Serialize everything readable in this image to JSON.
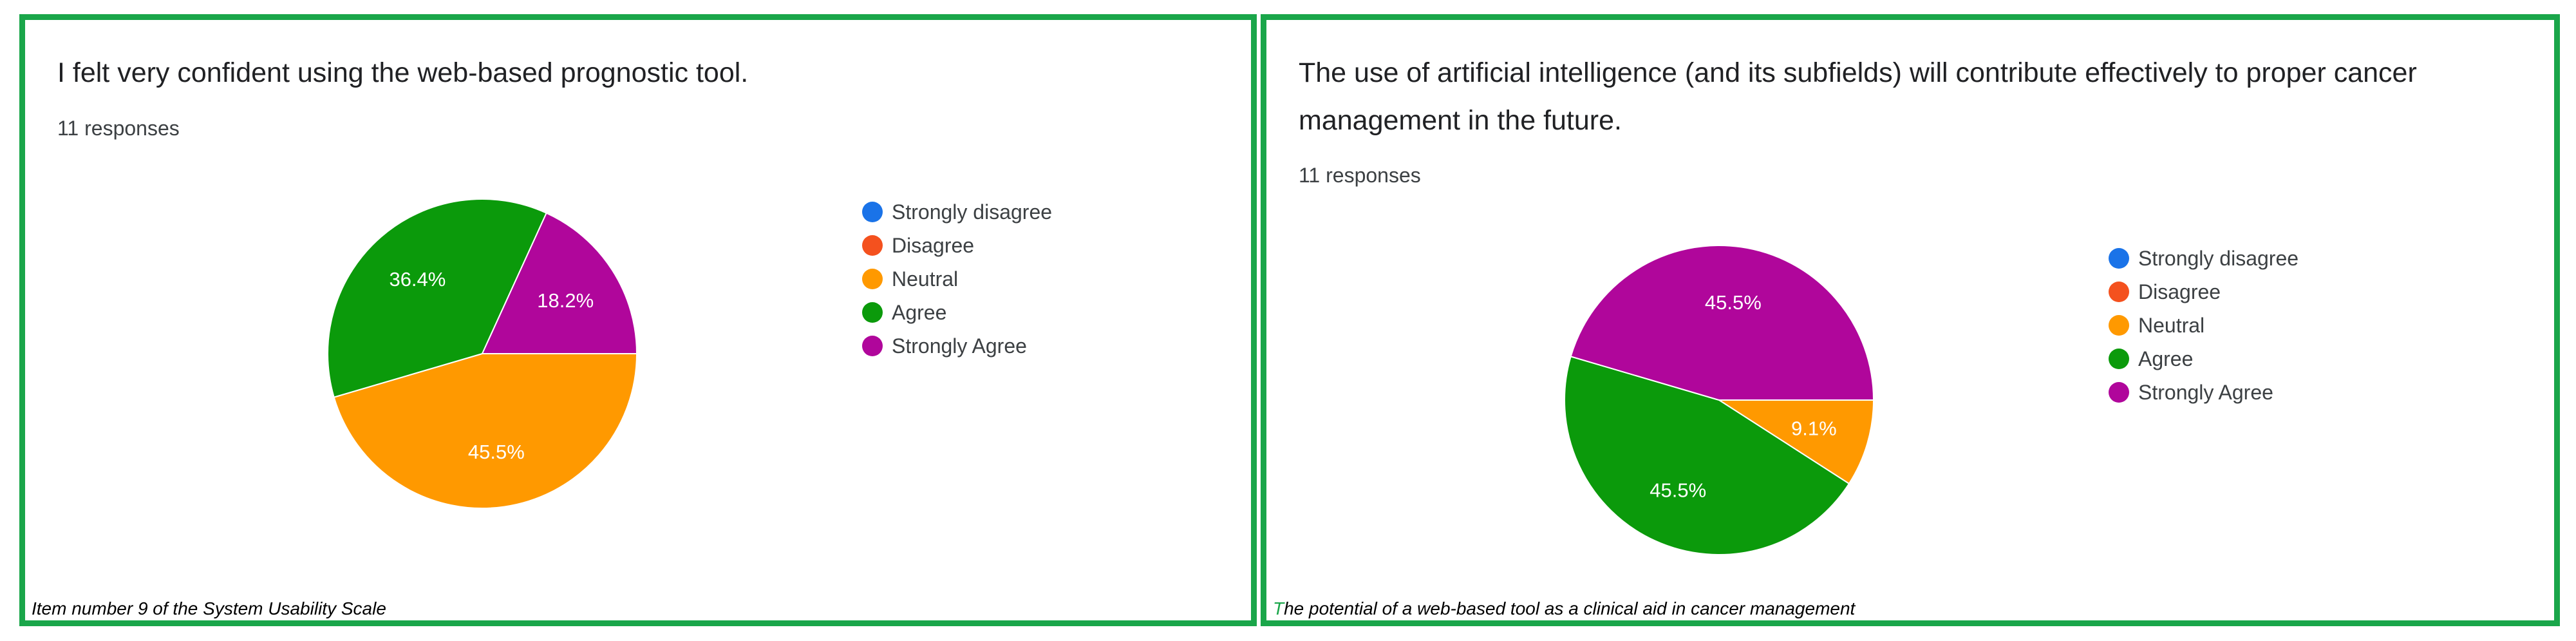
{
  "colors": {
    "border": "#1aa64a",
    "strongly_disagree": "#1a73e8",
    "disagree": "#f4511e",
    "neutral": "#ff9900",
    "agree": "#0b9a0b",
    "strongly_agree": "#b0069b"
  },
  "legend_items": [
    "Strongly disagree",
    "Disagree",
    "Neutral",
    "Agree",
    "Strongly Agree"
  ],
  "left": {
    "title": "I felt very confident using the web-based prognostic tool.",
    "responses": "11 responses",
    "caption_lead": "",
    "caption_rest": "Item number  9  of the System Usability Scale"
  },
  "right": {
    "title_line1": "The use of artificial intelligence (and its subfields) will contribute effectively to proper cancer",
    "title_line2": "management in the future.",
    "responses": "11 responses",
    "caption_lead": "T",
    "caption_rest": "he potential of a web-based tool as a clinical aid in cancer management"
  },
  "chart_data": [
    {
      "type": "pie",
      "title": "I felt very confident using the web-based prognostic tool.",
      "categories": [
        "Strongly disagree",
        "Disagree",
        "Neutral",
        "Agree",
        "Strongly Agree"
      ],
      "values": [
        0,
        0,
        45.5,
        36.4,
        18.2
      ],
      "labels": [
        "",
        "",
        "45.5%",
        "36.4%",
        "18.2%"
      ],
      "legend_position": "right"
    },
    {
      "type": "pie",
      "title": "The use of artificial intelligence (and its subfields) will contribute effectively to proper cancer management in the future.",
      "categories": [
        "Strongly disagree",
        "Disagree",
        "Neutral",
        "Agree",
        "Strongly Agree"
      ],
      "values": [
        0,
        0,
        9.1,
        45.5,
        45.5
      ],
      "labels": [
        "",
        "",
        "9.1%",
        "45.5%",
        "45.5%"
      ],
      "legend_position": "right"
    }
  ]
}
